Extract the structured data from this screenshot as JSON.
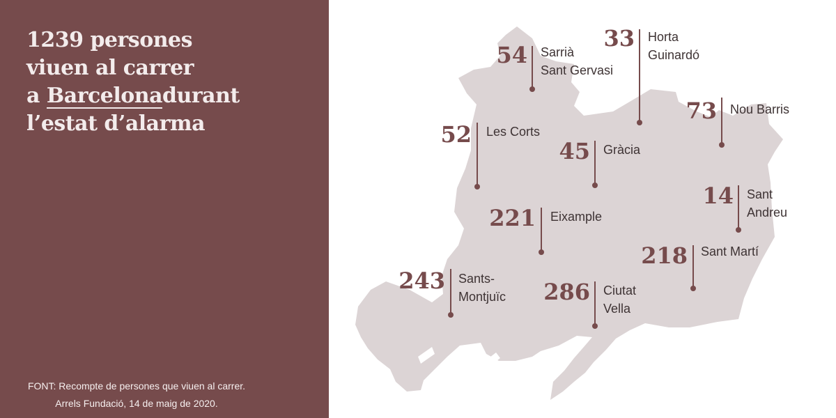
{
  "title_lines": {
    "line1": "1239 persones",
    "line2": "viuen al carrer",
    "line3_prefix": "a",
    "line3_city": "Barcelona",
    "line3_suffix": "durant",
    "line4": "l’estat d’alarma"
  },
  "source_lines": {
    "line1": "FONT: Recompte de persones que viuen al carrer.",
    "line2": "Arrels Fundació, 14 de maig de 2020."
  },
  "colors": {
    "panel": "#764b4c",
    "map_fill": "#dcd4d5",
    "accent": "#764b4c",
    "text_light": "#f3ecec",
    "label_text": "#3e3334"
  },
  "districts": [
    {
      "id": "sarria",
      "count": "54",
      "name_lines": [
        "Sarrià",
        "Sant Gervasi"
      ]
    },
    {
      "id": "horta",
      "count": "33",
      "name_lines": [
        "Horta",
        "Guinardó"
      ]
    },
    {
      "id": "noubarris",
      "count": "73",
      "name_lines": [
        "Nou Barris"
      ]
    },
    {
      "id": "lescorts",
      "count": "52",
      "name_lines": [
        "Les Corts"
      ]
    },
    {
      "id": "gracia",
      "count": "45",
      "name_lines": [
        "Gràcia"
      ]
    },
    {
      "id": "santandreu",
      "count": "14",
      "name_lines": [
        "Sant",
        "Andreu"
      ]
    },
    {
      "id": "eixample",
      "count": "221",
      "name_lines": [
        "Eixample"
      ]
    },
    {
      "id": "santmarti",
      "count": "218",
      "name_lines": [
        "Sant Martí"
      ]
    },
    {
      "id": "sants",
      "count": "243",
      "name_lines": [
        "Sants-",
        "Montjuïc"
      ]
    },
    {
      "id": "ciutatvella",
      "count": "286",
      "name_lines": [
        "Ciutat",
        "Vella"
      ]
    }
  ]
}
